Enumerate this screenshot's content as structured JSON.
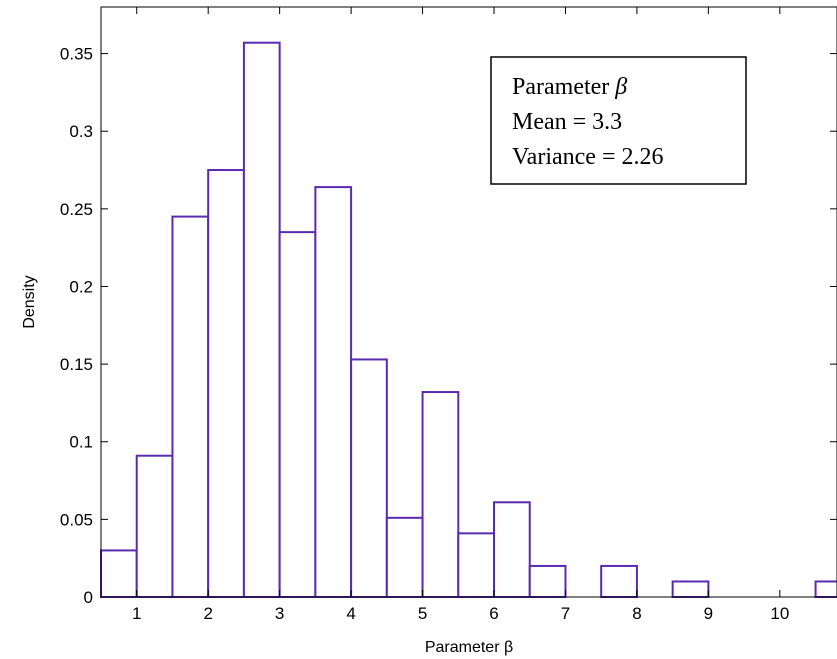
{
  "chart_data": {
    "type": "bar",
    "xlabel": "Parameter β",
    "ylabel": "Density",
    "xlim": [
      0.5,
      10.8
    ],
    "ylim": [
      0,
      0.38
    ],
    "x_ticks": [
      1,
      2,
      3,
      4,
      5,
      6,
      7,
      8,
      9,
      10
    ],
    "x_tick_labels": [
      "1",
      "2",
      "3",
      "4",
      "5",
      "6",
      "7",
      "8",
      "9",
      "10"
    ],
    "y_ticks": [
      0,
      0.05,
      0.1,
      0.15,
      0.2,
      0.25,
      0.3,
      0.35
    ],
    "y_tick_labels": [
      "0",
      "0.05",
      "0.1",
      "0.15",
      "0.2",
      "0.25",
      "0.3",
      "0.35"
    ],
    "bin_width": 0.5,
    "bin_centers": [
      0.75,
      1.25,
      1.75,
      2.25,
      2.75,
      3.25,
      3.75,
      4.25,
      4.75,
      5.25,
      5.75,
      6.25,
      6.75,
      7.25,
      7.75,
      8.25,
      8.75,
      9.25,
      9.75,
      10.25,
      10.75
    ],
    "values": [
      0.03,
      0.091,
      0.245,
      0.275,
      0.357,
      0.235,
      0.264,
      0.153,
      0.051,
      0.132,
      0.041,
      0.061,
      0.02,
      0,
      0.02,
      0,
      0.01,
      0,
      0,
      0,
      0.01
    ],
    "bar_color": "#5a2ab0",
    "grid": false,
    "legend": {
      "placement": "top-right",
      "line1_prefix": "Parameter ",
      "line1_symbol": "β",
      "line2": "Mean = 3.3",
      "line3": "Variance = 2.26"
    }
  }
}
